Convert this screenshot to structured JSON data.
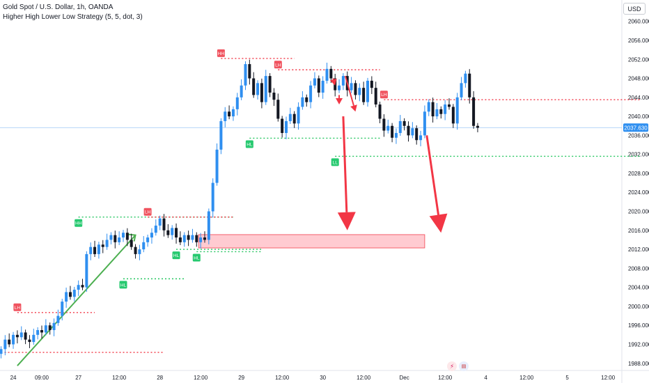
{
  "header": {
    "title": "Gold Spot / U.S. Dollar, 1h, OANDA",
    "indicator": "Higher High Lower Low Strategy (5, 5, dot, 3)"
  },
  "currency_button": "USD",
  "icons": {
    "lightning": "lightning-icon",
    "flag": "us-flag-icon"
  },
  "colors": {
    "up": "#2f8ff0",
    "down": "#131722",
    "resistance": "#f23645",
    "support": "#22c55e",
    "zone_fill": "#ffc9cf",
    "zone_border": "#f23645",
    "arrow": "#f23645",
    "trend": "#4caf50",
    "price_tag": "#2f8ff0"
  },
  "chart_data": {
    "type": "candlestick",
    "symbol": "XAUUSD",
    "interval": "1h",
    "ylim": [
      1986.5,
      2064.5
    ],
    "y_ticks": [
      1988,
      1992,
      1996,
      2000,
      2004,
      2008,
      2012,
      2016,
      2020,
      2024,
      2028,
      2032,
      2036,
      2040,
      2044,
      2048,
      2052,
      2056,
      2060
    ],
    "x_ticks": [
      {
        "i": 3,
        "label": "24"
      },
      {
        "i": 10,
        "label": "09:00"
      },
      {
        "i": 19,
        "label": "27"
      },
      {
        "i": 29,
        "label": "12:00"
      },
      {
        "i": 39,
        "label": "28"
      },
      {
        "i": 49,
        "label": "12:00"
      },
      {
        "i": 59,
        "label": "29"
      },
      {
        "i": 69,
        "label": "12:00"
      },
      {
        "i": 79,
        "label": "30"
      },
      {
        "i": 89,
        "label": "12:00"
      },
      {
        "i": 99,
        "label": "Dec"
      },
      {
        "i": 109,
        "label": "12:00"
      },
      {
        "i": 119,
        "label": "4"
      },
      {
        "i": 129,
        "label": "12:00"
      },
      {
        "i": 139,
        "label": "5"
      },
      {
        "i": 149,
        "label": "12:00"
      }
    ],
    "current_price": "2037.630",
    "current_price_value": 2037.63,
    "candles_close": [
      1991.0,
      1993.0,
      1992.0,
      1994.0,
      1993.5,
      1994.5,
      1993.0,
      1992.5,
      1994.0,
      1995.0,
      1994.5,
      1996.0,
      1995.0,
      1996.5,
      1998.0,
      2001.0,
      2003.0,
      2002.0,
      2003.5,
      2004.5,
      2004.0,
      2011.0,
      2012.5,
      2011.0,
      2013.0,
      2012.5,
      2014.0,
      2015.0,
      2013.5,
      2014.5,
      2015.5,
      2014.0,
      2012.5,
      2011.0,
      2012.0,
      2013.5,
      2014.5,
      2015.5,
      2017.0,
      2018.5,
      2016.0,
      2015.0,
      2016.5,
      2014.5,
      2013.5,
      2015.0,
      2014.0,
      2015.0,
      2013.5,
      2014.5,
      2014.0,
      2020.0,
      2026.0,
      2033.0,
      2039.0,
      2041.0,
      2040.0,
      2041.5,
      2044.0,
      2046.5,
      2051.0,
      2048.0,
      2044.5,
      2047.0,
      2043.0,
      2048.5,
      2045.0,
      2043.5,
      2039.5,
      2036.5,
      2039.0,
      2040.5,
      2038.5,
      2042.0,
      2044.0,
      2043.0,
      2046.5,
      2048.0,
      2045.0,
      2047.5,
      2050.0,
      2048.0,
      2045.5,
      2046.5,
      2048.5,
      2045.5,
      2047.0,
      2044.5,
      2046.0,
      2043.0,
      2047.5,
      2046.0,
      2042.5,
      2039.5,
      2037.0,
      2038.0,
      2035.5,
      2036.5,
      2039.0,
      2038.0,
      2036.0,
      2037.5,
      2035.0,
      2036.0,
      2041.0,
      2043.0,
      2040.0,
      2041.5,
      2040.5,
      2042.5,
      2042.0,
      2038.5,
      2044.0,
      2047.0,
      2049.0,
      2044.0,
      2038.0,
      2037.6
    ],
    "pivots": [
      {
        "label": "LH",
        "type": "resistance",
        "i": 4,
        "price": 1998.7,
        "line_to": 23
      },
      {
        "label": "HH",
        "type": "support",
        "i": 19,
        "price": 2018.8,
        "line_to": 57
      },
      {
        "label": "LH",
        "type": "resistance",
        "i": 36,
        "price": 2018.8,
        "line_to": 57
      },
      {
        "label": "HL",
        "type": "support",
        "i": 30,
        "price": 2005.8,
        "line_to": 45
      },
      {
        "label": "HL",
        "type": "support",
        "i": 43,
        "price": 2012.0,
        "line_to": 64
      },
      {
        "label": "HL",
        "type": "support",
        "i": 48,
        "price": 2011.5,
        "line_to": 64
      },
      {
        "label": "HH",
        "type": "resistance",
        "i": 54,
        "price": 2052.2,
        "line_to": 72
      },
      {
        "label": "LH",
        "type": "resistance",
        "i": 68,
        "price": 2049.8,
        "line_to": 93
      },
      {
        "label": "HL",
        "type": "support",
        "i": 61,
        "price": 2035.4,
        "line_to": 93
      },
      {
        "label": "LH",
        "type": "resistance",
        "i": 94,
        "price": 2043.5,
        "line_to": 157
      },
      {
        "label": "LL",
        "type": "support",
        "i": 82,
        "price": 2031.6,
        "line_to": 157
      }
    ],
    "resistance_left": {
      "price": 1990.3,
      "from": 0,
      "to": 35
    },
    "support_left": {
      "price": 1989.2,
      "from": 0,
      "to": 35
    },
    "demand_zone": {
      "from_i": 48.5,
      "to_i": 104,
      "top": 2015.1,
      "bottom": 2012.3
    },
    "trendline": {
      "from_i": 4,
      "from_price": 1987.5,
      "to_i": 33,
      "to_price": 2015.0
    },
    "arrows": [
      {
        "from_i": 84,
        "from_price": 2040.0,
        "to_i": 85,
        "to_price": 2016.0,
        "size": "big"
      },
      {
        "from_i": 104.5,
        "from_price": 2036.0,
        "to_i": 108,
        "to_price": 2015.5,
        "size": "big"
      },
      {
        "from_i": 84.5,
        "from_price": 2048.5,
        "to_i": 87,
        "to_price": 2041.0,
        "size": "small"
      },
      {
        "from_i": 81.5,
        "from_price": 2048.0,
        "to_i": 82,
        "to_price": 2046.5,
        "size": "small"
      },
      {
        "from_i": 83,
        "from_price": 2044.5,
        "to_i": 83,
        "to_price": 2042.5,
        "size": "small"
      }
    ]
  }
}
